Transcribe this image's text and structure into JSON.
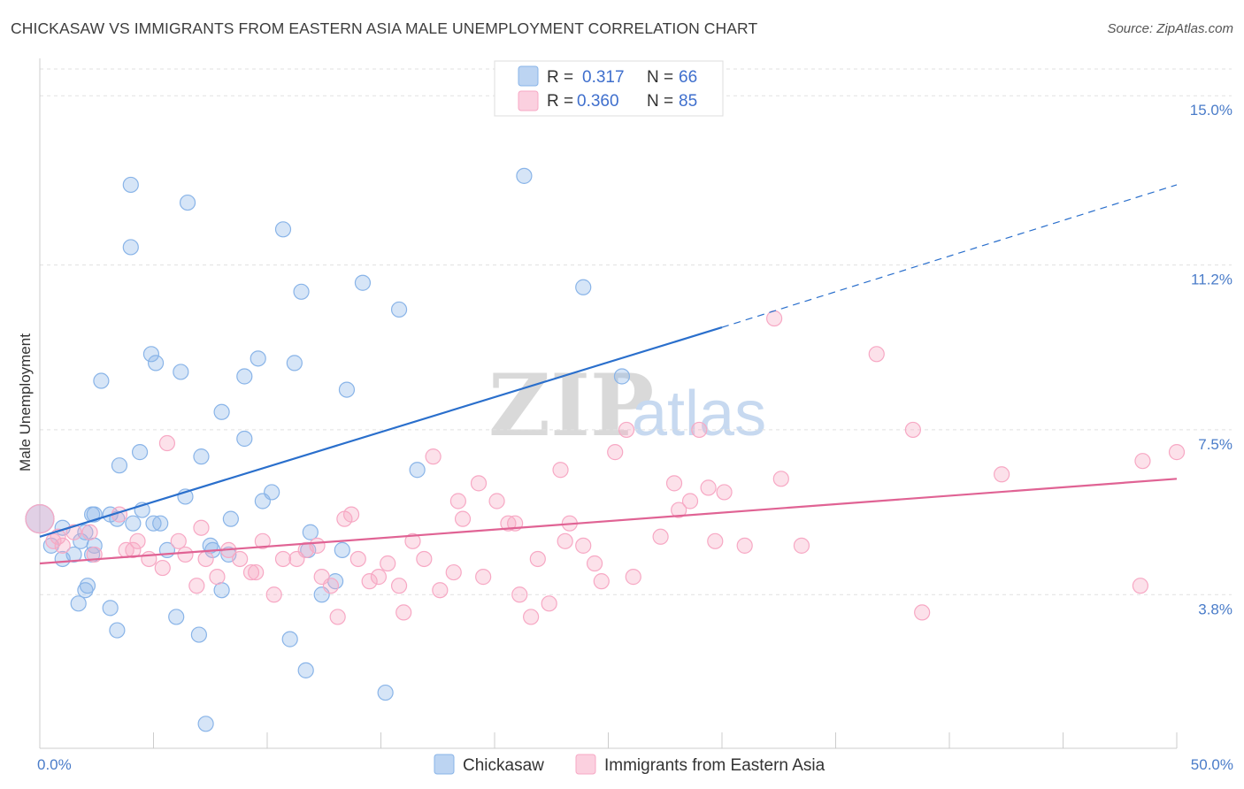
{
  "title": "CHICKASAW VS IMMIGRANTS FROM EASTERN ASIA MALE UNEMPLOYMENT CORRELATION CHART",
  "source": "Source: ZipAtlas.com",
  "watermark": {
    "zip": "ZIP",
    "atlas": "atlas"
  },
  "legend": {
    "r_label": "R =",
    "n_label": "N =",
    "entries": [
      {
        "r": "0.317",
        "n": "66"
      },
      {
        "r": "0.360",
        "n": "85"
      }
    ]
  },
  "chart_data": {
    "type": "scatter",
    "ylabel": "Male Unemployment",
    "xlim": [
      0,
      50
    ],
    "ylim": [
      0.35,
      15.6
    ],
    "x_ticks": [
      {
        "value": 0,
        "label": "0.0%"
      },
      {
        "value": 50,
        "label": "50.0%"
      }
    ],
    "y_ticks": [
      {
        "value": 3.8,
        "label": "3.8%"
      },
      {
        "value": 7.5,
        "label": "7.5%"
      },
      {
        "value": 11.2,
        "label": "11.2%"
      },
      {
        "value": 15.0,
        "label": "15.0%"
      }
    ],
    "grid": true,
    "legend_position": "top-center",
    "series": [
      {
        "name": "Chickasaw",
        "color": "#89b4e8",
        "line_color": "#2a6fcc",
        "trend": {
          "x0": 0,
          "y0": 5.1,
          "x1": 30,
          "y1": 9.8,
          "x_ext": 50,
          "y_ext": 13.0
        },
        "points": [
          [
            0,
            5.5
          ],
          [
            0.5,
            4.9
          ],
          [
            1,
            5.3
          ],
          [
            1.5,
            4.7
          ],
          [
            1,
            4.6
          ],
          [
            2,
            5.2
          ],
          [
            2.3,
            5.6
          ],
          [
            4,
            13.0
          ],
          [
            4,
            11.6
          ],
          [
            6.5,
            12.6
          ],
          [
            10.7,
            12.0
          ],
          [
            21.3,
            13.2
          ],
          [
            11.5,
            10.6
          ],
          [
            14.2,
            10.8
          ],
          [
            15.8,
            10.2
          ],
          [
            23.9,
            10.7
          ],
          [
            2.7,
            8.6
          ],
          [
            4.9,
            9.2
          ],
          [
            5.1,
            9.0
          ],
          [
            6.2,
            8.8
          ],
          [
            9.0,
            8.7
          ],
          [
            9.6,
            9.1
          ],
          [
            11.2,
            9.0
          ],
          [
            13.5,
            8.4
          ],
          [
            8.0,
            7.9
          ],
          [
            25.6,
            8.7
          ],
          [
            9.0,
            7.3
          ],
          [
            3.5,
            6.7
          ],
          [
            4.4,
            7.0
          ],
          [
            7.1,
            6.9
          ],
          [
            6.4,
            6.0
          ],
          [
            16.6,
            6.6
          ],
          [
            10.2,
            6.1
          ],
          [
            9.8,
            5.9
          ],
          [
            2.4,
            5.6
          ],
          [
            3.1,
            5.6
          ],
          [
            3.4,
            5.5
          ],
          [
            4.1,
            5.4
          ],
          [
            4.5,
            5.7
          ],
          [
            5.0,
            5.4
          ],
          [
            5.3,
            5.4
          ],
          [
            8.4,
            5.5
          ],
          [
            11.9,
            5.2
          ],
          [
            1.8,
            5.0
          ],
          [
            2.4,
            4.9
          ],
          [
            7.6,
            4.8
          ],
          [
            7.5,
            4.9
          ],
          [
            8.3,
            4.7
          ],
          [
            11.8,
            4.8
          ],
          [
            13.3,
            4.8
          ],
          [
            5.6,
            4.8
          ],
          [
            2.3,
            4.7
          ],
          [
            2.0,
            3.9
          ],
          [
            2.1,
            4.0
          ],
          [
            1.7,
            3.6
          ],
          [
            3.1,
            3.5
          ],
          [
            8.0,
            3.9
          ],
          [
            12.4,
            3.8
          ],
          [
            13.0,
            4.1
          ],
          [
            6.0,
            3.3
          ],
          [
            3.4,
            3.0
          ],
          [
            7.0,
            2.9
          ],
          [
            11.0,
            2.8
          ],
          [
            11.7,
            2.1
          ],
          [
            15.2,
            1.6
          ],
          [
            7.3,
            0.9
          ]
        ]
      },
      {
        "name": "Immigrants from Eastern Asia",
        "color": "#f7a8c4",
        "line_color": "#e06394",
        "trend": {
          "x0": 0,
          "y0": 4.5,
          "x1": 50,
          "y1": 6.4
        },
        "points": [
          [
            0,
            5.5
          ],
          [
            0.8,
            5.1
          ],
          [
            1.5,
            5.2
          ],
          [
            2.2,
            5.2
          ],
          [
            1.0,
            4.9
          ],
          [
            2.4,
            4.7
          ],
          [
            3.5,
            5.6
          ],
          [
            3.8,
            4.8
          ],
          [
            4.1,
            4.8
          ],
          [
            4.3,
            5.0
          ],
          [
            4.8,
            4.6
          ],
          [
            5.4,
            4.4
          ],
          [
            5.6,
            7.2
          ],
          [
            6.1,
            5.0
          ],
          [
            6.4,
            4.7
          ],
          [
            6.9,
            4.0
          ],
          [
            7.1,
            5.3
          ],
          [
            7.3,
            4.6
          ],
          [
            7.8,
            4.2
          ],
          [
            8.3,
            4.8
          ],
          [
            8.8,
            4.6
          ],
          [
            9.3,
            4.3
          ],
          [
            9.5,
            4.3
          ],
          [
            9.8,
            5.0
          ],
          [
            10.3,
            3.8
          ],
          [
            10.7,
            4.6
          ],
          [
            11.3,
            4.6
          ],
          [
            11.7,
            4.8
          ],
          [
            12.2,
            4.9
          ],
          [
            12.4,
            4.2
          ],
          [
            12.8,
            4.0
          ],
          [
            13.1,
            3.3
          ],
          [
            13.4,
            5.5
          ],
          [
            13.7,
            5.6
          ],
          [
            14.0,
            4.6
          ],
          [
            14.5,
            4.1
          ],
          [
            14.9,
            4.2
          ],
          [
            15.3,
            4.5
          ],
          [
            15.8,
            4.0
          ],
          [
            16.0,
            3.4
          ],
          [
            16.4,
            5.0
          ],
          [
            16.9,
            4.6
          ],
          [
            17.3,
            6.9
          ],
          [
            17.6,
            3.9
          ],
          [
            18.2,
            4.3
          ],
          [
            18.4,
            5.9
          ],
          [
            18.6,
            5.5
          ],
          [
            19.3,
            6.3
          ],
          [
            19.5,
            4.2
          ],
          [
            20.1,
            5.9
          ],
          [
            20.6,
            5.4
          ],
          [
            20.9,
            5.4
          ],
          [
            21.1,
            3.8
          ],
          [
            21.6,
            3.3
          ],
          [
            21.9,
            4.6
          ],
          [
            22.4,
            3.6
          ],
          [
            22.9,
            6.6
          ],
          [
            23.1,
            5.0
          ],
          [
            23.3,
            5.4
          ],
          [
            23.9,
            4.9
          ],
          [
            24.4,
            4.5
          ],
          [
            24.7,
            4.1
          ],
          [
            25.3,
            7.0
          ],
          [
            25.8,
            7.5
          ],
          [
            26.1,
            4.2
          ],
          [
            27.3,
            5.1
          ],
          [
            27.9,
            6.3
          ],
          [
            28.1,
            5.7
          ],
          [
            28.6,
            5.9
          ],
          [
            29.0,
            7.5
          ],
          [
            29.4,
            6.2
          ],
          [
            29.7,
            5.0
          ],
          [
            30.1,
            6.1
          ],
          [
            31.0,
            4.9
          ],
          [
            32.3,
            10.0
          ],
          [
            32.6,
            6.4
          ],
          [
            33.5,
            4.9
          ],
          [
            36.8,
            9.2
          ],
          [
            38.8,
            3.4
          ],
          [
            38.4,
            7.5
          ],
          [
            42.3,
            6.5
          ],
          [
            48.4,
            4.0
          ],
          [
            48.5,
            6.8
          ],
          [
            50.0,
            7.0
          ],
          [
            0.6,
            5.0
          ]
        ]
      }
    ]
  }
}
